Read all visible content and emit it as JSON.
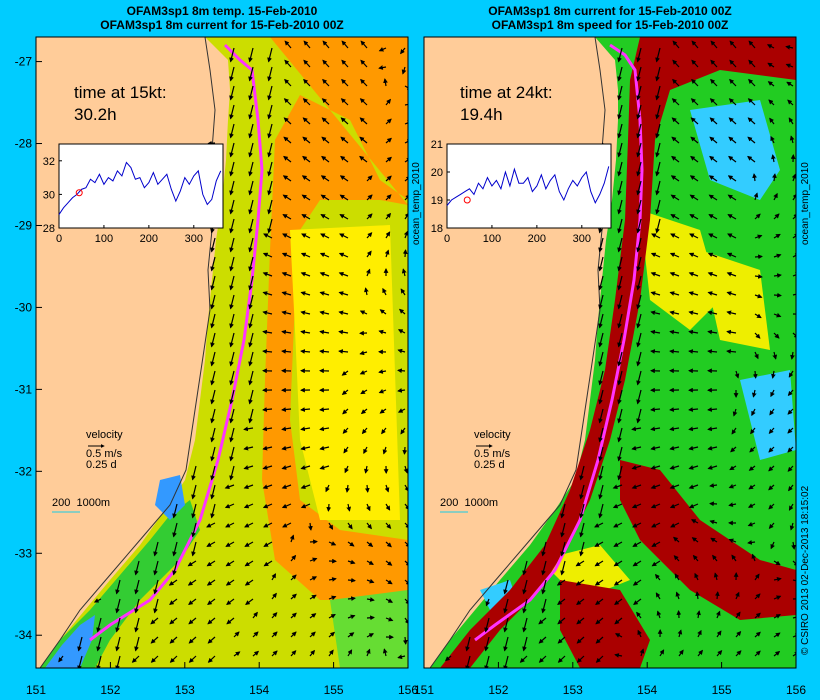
{
  "left_panel": {
    "title_line1": "OFAM3sp1 8m temp. 15-Feb-2010",
    "title_line2": "OFAM3sp1 8m current for 15-Feb-2010 00Z",
    "time_label": "time at 15kt:",
    "time_value": "30.2h",
    "velocity_label": "velocity",
    "velocity_speed": "0.5 m/s",
    "velocity_days": "0.25 d",
    "depth_label": "200  1000m",
    "side_label": "ocean_temp_2010"
  },
  "right_panel": {
    "title_line1": "OFAM3sp1 8m current for 15-Feb-2010 00Z",
    "title_line2": "OFAM3sp1 8m speed for 15-Feb-2010 00Z",
    "time_label": "time at 24kt:",
    "time_value": "19.4h",
    "velocity_label": "velocity",
    "velocity_speed": "0.5 m/s",
    "velocity_days": "0.25 d",
    "depth_label": "200  1000m",
    "side_label": "ocean_temp_2010"
  },
  "credit": "© CSIRO 2013   02-Dec-2013 18:15:02",
  "colors": {
    "background": "#00ccff",
    "land": "#ffcc99",
    "track": "#ff33ff",
    "inset_line": "#0000cc"
  },
  "chart_data": [
    {
      "type": "map",
      "name": "temperature panel",
      "x_ticks": [
        "151",
        "152",
        "153",
        "154",
        "155",
        "156"
      ],
      "y_ticks": [
        "-27",
        "-28",
        "-29",
        "-30",
        "-31",
        "-32",
        "-33",
        "-34"
      ],
      "xlim": [
        151,
        156
      ],
      "ylim": [
        -34.4,
        -26.7
      ],
      "inset": {
        "type": "line",
        "x_ticks": [
          "0",
          "100",
          "200",
          "300"
        ],
        "y_ticks": [
          "28",
          "30",
          "32"
        ],
        "xlim": [
          0,
          365
        ],
        "ylim": [
          28,
          33
        ],
        "marker_x": 45,
        "marker_y": 30.1,
        "x": [
          0,
          10,
          20,
          30,
          40,
          50,
          60,
          70,
          80,
          90,
          100,
          110,
          120,
          130,
          140,
          150,
          160,
          170,
          180,
          190,
          200,
          210,
          220,
          230,
          240,
          250,
          260,
          270,
          280,
          290,
          300,
          310,
          320,
          330,
          340,
          350,
          360
        ],
        "values": [
          28.8,
          29.2,
          29.5,
          29.8,
          30.0,
          30.3,
          30.4,
          30.9,
          30.7,
          31.2,
          30.6,
          31.0,
          30.8,
          31.4,
          31.1,
          31.9,
          31.6,
          30.9,
          31.0,
          30.4,
          30.7,
          31.3,
          30.6,
          30.9,
          31.2,
          30.3,
          29.6,
          30.2,
          31.0,
          30.6,
          31.1,
          31.4,
          30.0,
          29.4,
          29.7,
          30.8,
          31.4
        ]
      }
    },
    {
      "type": "map",
      "name": "speed panel",
      "x_ticks": [
        "151",
        "152",
        "153",
        "154",
        "155",
        "156"
      ],
      "y_ticks": [],
      "xlim": [
        151,
        156
      ],
      "ylim": [
        -34.4,
        -26.7
      ],
      "inset": {
        "type": "line",
        "x_ticks": [
          "0",
          "100",
          "200",
          "300"
        ],
        "y_ticks": [
          "18",
          "19",
          "20",
          "21"
        ],
        "xlim": [
          0,
          365
        ],
        "ylim": [
          18,
          21
        ],
        "marker_x": 45,
        "marker_y": 19.0,
        "x": [
          0,
          10,
          20,
          30,
          40,
          50,
          60,
          70,
          80,
          90,
          100,
          110,
          120,
          130,
          140,
          150,
          160,
          170,
          180,
          190,
          200,
          210,
          220,
          230,
          240,
          250,
          260,
          270,
          280,
          290,
          300,
          310,
          320,
          330,
          340,
          350,
          360
        ],
        "values": [
          18.8,
          19.0,
          19.1,
          19.2,
          19.3,
          19.4,
          19.2,
          19.6,
          19.4,
          19.8,
          19.5,
          19.7,
          19.4,
          20.0,
          19.5,
          20.1,
          19.6,
          19.6,
          19.8,
          19.3,
          19.5,
          19.9,
          19.4,
          19.7,
          19.9,
          19.3,
          19.0,
          19.4,
          19.7,
          19.5,
          19.8,
          20.0,
          19.3,
          18.9,
          19.2,
          19.6,
          20.2
        ]
      }
    }
  ]
}
